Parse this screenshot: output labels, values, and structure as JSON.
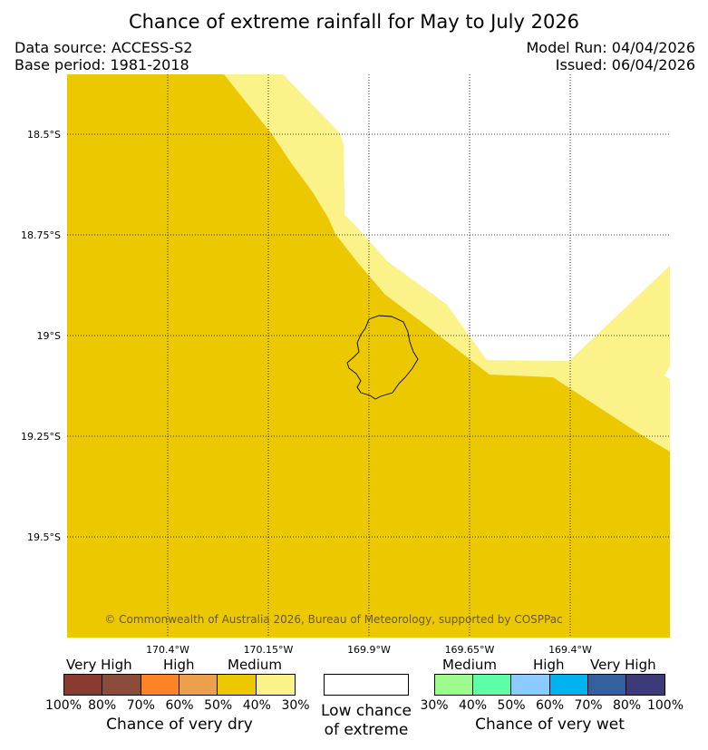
{
  "header": {
    "title": "Chance of extreme rainfall for May to July 2026",
    "data_source": "Data source: ACCESS-S2",
    "base_period": "Base period: 1981-2018",
    "model_run": "Model Run: 04/04/2026",
    "issued": "Issued: 06/04/2026"
  },
  "map": {
    "lat_labels": [
      "18.5°S",
      "18.75°S",
      "19°S",
      "19.25°S",
      "19.5°S"
    ],
    "lon_labels": [
      "170.4°W",
      "170.15°W",
      "169.9°W",
      "169.65°W",
      "169.4°W"
    ],
    "copyright": "© Commonwealth of Australia 2026, Bureau of Meteorology, supported by COSPPac",
    "colors": {
      "medium_dry": "#ecc800",
      "low_dry": "#fbf38a",
      "low_chance": "#ffffff"
    }
  },
  "legend": {
    "dry": {
      "level_labels": [
        "Very High",
        "High",
        "Medium"
      ],
      "percents": [
        "100%",
        "80%",
        "70%",
        "60%",
        "50%",
        "40%",
        "30%"
      ],
      "colors": [
        "#8b3a2f",
        "#8b4c3a",
        "#ff8225",
        "#eda04c",
        "#ecc800",
        "#fbf38a"
      ],
      "caption": "Chance of very dry"
    },
    "low": {
      "caption_line1": "Low chance",
      "caption_line2": "of extreme"
    },
    "wet": {
      "level_labels": [
        "Medium",
        "High",
        "Very High"
      ],
      "percents": [
        "30%",
        "40%",
        "50%",
        "60%",
        "70%",
        "80%",
        "100%"
      ],
      "colors": [
        "#9cfb8c",
        "#5cffa8",
        "#8bcbff",
        "#00b3f0",
        "#3460a0",
        "#3d3a7a"
      ],
      "caption": "Chance of very wet"
    }
  }
}
